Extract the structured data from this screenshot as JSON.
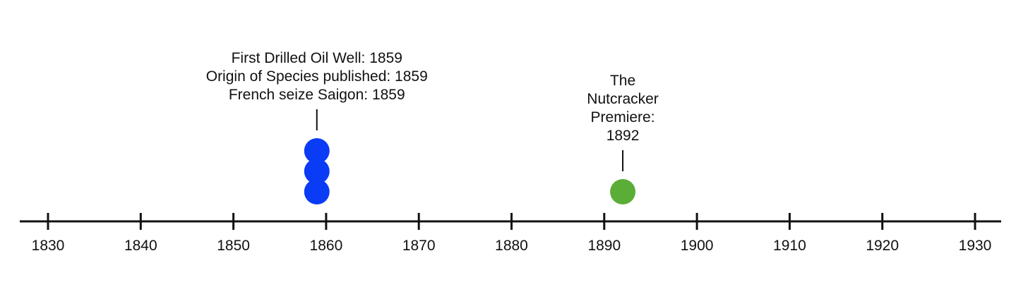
{
  "chart_data": {
    "type": "timeline",
    "axis": {
      "min": 1827,
      "max": 1930.5,
      "ticks": [
        1830,
        1840,
        1850,
        1860,
        1870,
        1880,
        1890,
        1900,
        1910,
        1920,
        1930
      ],
      "tick_labels": [
        "1830",
        "1840",
        "1850",
        "1860",
        "1870",
        "1880",
        "1890",
        "1900",
        "1910",
        "1920",
        "1930"
      ]
    },
    "groups": [
      {
        "year": 1859,
        "color": "#0a3cf5",
        "label_lines": [
          "First Drilled Oil Well: 1859",
          "Origin of Species published: 1859",
          "French seize Saigon: 1859"
        ],
        "events": [
          {
            "name": "First Drilled Oil Well",
            "year": 1859
          },
          {
            "name": "Origin of Species published",
            "year": 1859
          },
          {
            "name": "French seize Saigon",
            "year": 1859
          }
        ]
      },
      {
        "year": 1892,
        "color": "#5aae37",
        "label_lines": [
          "The",
          "Nutcracker",
          "Premiere:",
          "1892"
        ],
        "events": [
          {
            "name": "The Nutcracker Premiere",
            "year": 1892
          }
        ]
      }
    ]
  }
}
